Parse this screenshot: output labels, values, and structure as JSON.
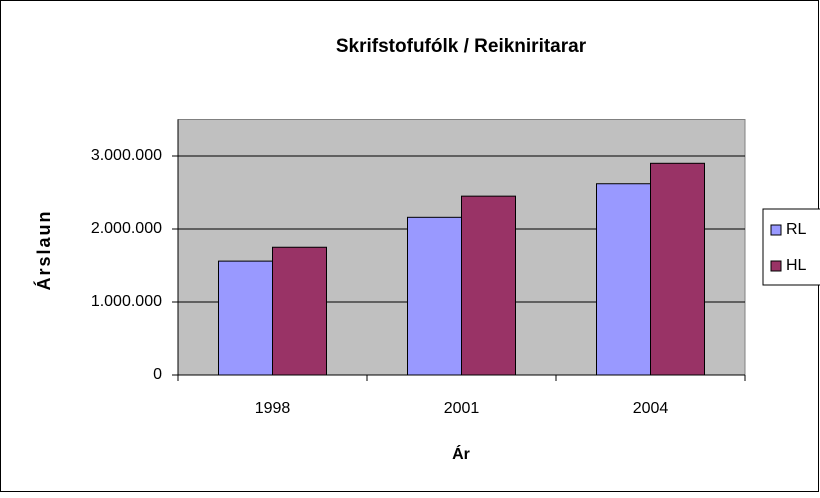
{
  "chart_data": {
    "type": "bar",
    "title": "Skrifstofufólk / Reikniritarar",
    "x_label": "Ár",
    "y_label": "Árslaun",
    "categories": [
      "1998",
      "2001",
      "2004"
    ],
    "series": [
      {
        "name": "RL",
        "color": "#9999ff",
        "values": [
          1560000,
          2160000,
          2620000
        ]
      },
      {
        "name": "HL",
        "color": "#993366",
        "values": [
          1750000,
          2450000,
          2900000
        ]
      }
    ],
    "ylim": [
      0,
      3500000
    ],
    "yticks": [
      0,
      {
        "value": 1000000,
        "label": "1.000.000"
      },
      {
        "value": 2000000,
        "label": "2.000.000"
      },
      {
        "value": 3000000,
        "label": "3.000.000"
      }
    ],
    "grid": true,
    "legend": "right",
    "plot_background": "#c0c0c0"
  }
}
